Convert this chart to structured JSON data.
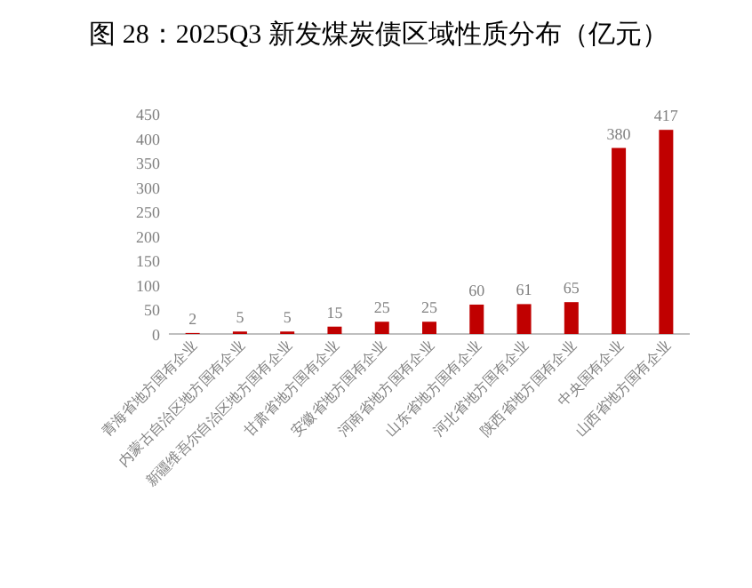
{
  "chart_data": {
    "type": "bar",
    "title": "图 28：2025Q3 新发煤炭债区域性质分布（亿元）",
    "categories": [
      "青海省地方国有企业",
      "内蒙古自治区地方国有企业",
      "新疆维吾尔自治区地方国有企业",
      "甘肃省地方国有企业",
      "安徽省地方国有企业",
      "河南省地方国有企业",
      "山东省地方国有企业",
      "河北省地方国有企业",
      "陕西省地方国有企业",
      "中央国有企业",
      "山西省地方国有企业"
    ],
    "values": [
      2,
      5,
      5,
      15,
      25,
      25,
      60,
      61,
      65,
      380,
      417
    ],
    "color": "#c00000",
    "ylim": [
      0,
      450
    ],
    "yticks": [
      0,
      50,
      100,
      150,
      200,
      250,
      300,
      350,
      400,
      450
    ],
    "data_labels": true,
    "grid": false
  }
}
